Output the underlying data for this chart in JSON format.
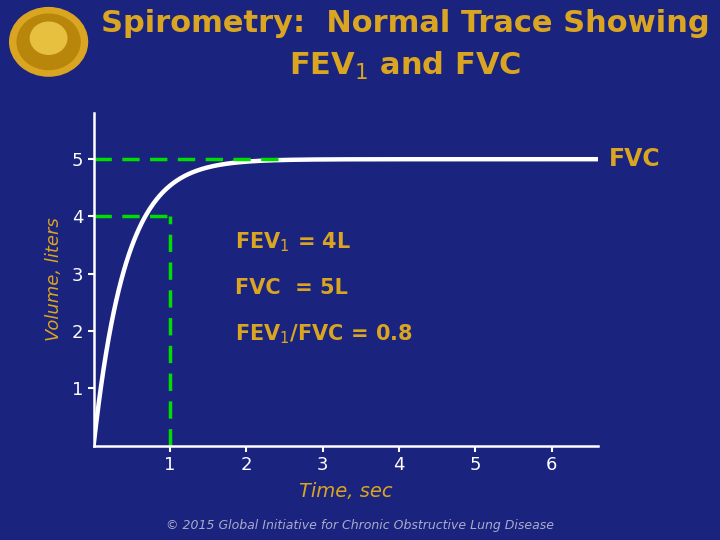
{
  "background_color": "#1a237e",
  "title_line1": "Spirometry:  Normal Trace Showing",
  "title_color": "#DAA520",
  "title_fontsize": 22,
  "separator_color": "#DAA520",
  "plot_bg_color": "#1a237e",
  "curve_color": "#ffffff",
  "curve_linewidth": 3.2,
  "dashed_color": "#00dd00",
  "dashed_linewidth": 2.5,
  "axis_color": "#ffffff",
  "tick_color": "#ffffff",
  "tick_fontsize": 13,
  "xlabel": "Time, sec",
  "ylabel": "Volume, liters",
  "xlabel_fontsize": 14,
  "ylabel_fontsize": 13,
  "label_color": "#DAA520",
  "fvc_label": "FVC",
  "fvc_label_fontsize": 17,
  "annotation_fontsize": 15,
  "annotation_color": "#DAA520",
  "copyright_text": "© 2015 Global Initiative for Chronic Obstructive Lung Disease",
  "copyright_fontsize": 9,
  "copyright_color": "#aaaacc",
  "xlim": [
    0,
    6.6
  ],
  "ylim": [
    0,
    5.8
  ],
  "xticks": [
    1,
    2,
    3,
    4,
    5,
    6
  ],
  "yticks": [
    1,
    2,
    3,
    4,
    5
  ],
  "fvc_asymptote": 5.0,
  "fev1_time": 1.0,
  "fev1_volume": 4.0,
  "curve_tau": 0.42,
  "logo_outer_color": "#DAA520",
  "logo_inner_color": "#b8860b",
  "logo_center_color": "#e8c040"
}
